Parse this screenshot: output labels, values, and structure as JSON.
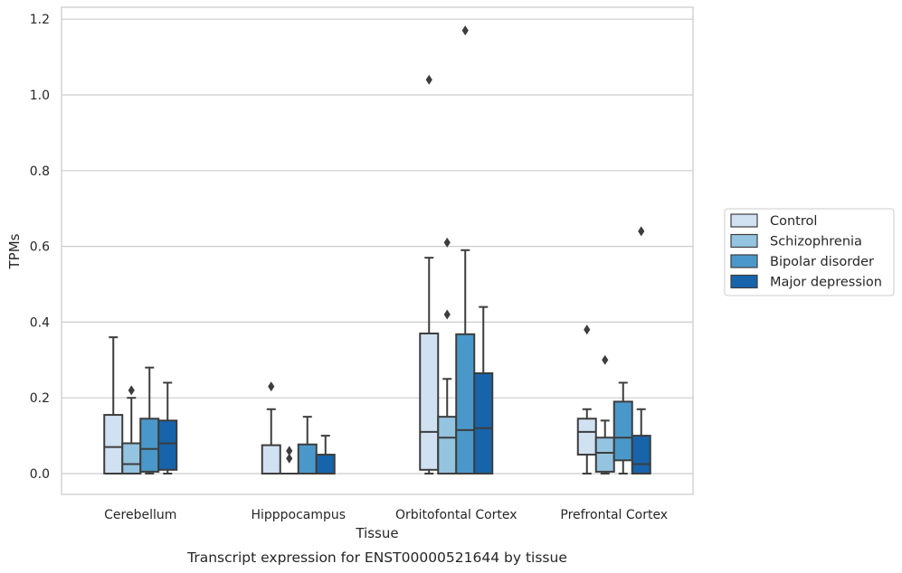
{
  "chart_data": {
    "type": "box",
    "title": "",
    "caption": "Transcript expression for ENST00000521644 by tissue",
    "xlabel": "Tissue",
    "ylabel": "TPMs",
    "ylim": [
      -0.055,
      1.23
    ],
    "yticks": [
      0.0,
      0.2,
      0.4,
      0.6,
      0.8,
      1.0,
      1.2
    ],
    "ytick_labels": [
      "0.0",
      "0.2",
      "0.4",
      "0.6",
      "0.8",
      "1.0",
      "1.2"
    ],
    "grid": true,
    "legend_position": "right",
    "categories": [
      "Cerebellum",
      "Hipppocampus",
      "Orbitofontal Cortex",
      "Prefrontal Cortex"
    ],
    "series": [
      {
        "name": "Control",
        "color": "#d0e1f2",
        "boxes": [
          {
            "whislo": 0.0,
            "q1": 0.0,
            "med": 0.07,
            "q3": 0.155,
            "whishi": 0.36,
            "fliers": []
          },
          {
            "whislo": 0.0,
            "q1": 0.0,
            "med": 0.0,
            "q3": 0.075,
            "whishi": 0.17,
            "fliers": [
              0.23
            ]
          },
          {
            "whislo": 0.0,
            "q1": 0.01,
            "med": 0.11,
            "q3": 0.37,
            "whishi": 0.57,
            "fliers": [
              1.04
            ]
          },
          {
            "whislo": 0.0,
            "q1": 0.05,
            "med": 0.11,
            "q3": 0.145,
            "whishi": 0.17,
            "fliers": [
              0.38
            ]
          }
        ]
      },
      {
        "name": "Schizophrenia",
        "color": "#94c4df",
        "boxes": [
          {
            "whislo": 0.0,
            "q1": 0.0,
            "med": 0.025,
            "q3": 0.08,
            "whishi": 0.2,
            "fliers": [
              0.22
            ]
          },
          {
            "whislo": 0.0,
            "q1": 0.0,
            "med": 0.0,
            "q3": 0.0,
            "whishi": 0.0,
            "fliers": [
              0.04,
              0.06
            ]
          },
          {
            "whislo": 0.0,
            "q1": 0.0,
            "med": 0.095,
            "q3": 0.15,
            "whishi": 0.25,
            "fliers": [
              0.42,
              0.61
            ]
          },
          {
            "whislo": 0.0,
            "q1": 0.005,
            "med": 0.055,
            "q3": 0.095,
            "whishi": 0.14,
            "fliers": [
              0.3
            ]
          }
        ]
      },
      {
        "name": "Bipolar disorder",
        "color": "#4a98c9",
        "boxes": [
          {
            "whislo": 0.0,
            "q1": 0.005,
            "med": 0.065,
            "q3": 0.145,
            "whishi": 0.28,
            "fliers": []
          },
          {
            "whislo": 0.0,
            "q1": 0.0,
            "med": 0.0,
            "q3": 0.077,
            "whishi": 0.15,
            "fliers": []
          },
          {
            "whislo": 0.0,
            "q1": 0.0,
            "med": 0.115,
            "q3": 0.368,
            "whishi": 0.59,
            "fliers": [
              1.17
            ]
          },
          {
            "whislo": 0.0,
            "q1": 0.035,
            "med": 0.095,
            "q3": 0.19,
            "whishi": 0.24,
            "fliers": []
          }
        ]
      },
      {
        "name": "Major depression",
        "color": "#1764ab",
        "boxes": [
          {
            "whislo": 0.0,
            "q1": 0.01,
            "med": 0.08,
            "q3": 0.14,
            "whishi": 0.24,
            "fliers": []
          },
          {
            "whislo": 0.0,
            "q1": 0.0,
            "med": 0.0,
            "q3": 0.05,
            "whishi": 0.1,
            "fliers": []
          },
          {
            "whislo": 0.0,
            "q1": 0.0,
            "med": 0.12,
            "q3": 0.265,
            "whishi": 0.44,
            "fliers": []
          },
          {
            "whislo": 0.0,
            "q1": 0.0,
            "med": 0.025,
            "q3": 0.1,
            "whishi": 0.17,
            "fliers": [
              0.64
            ]
          }
        ]
      }
    ]
  }
}
